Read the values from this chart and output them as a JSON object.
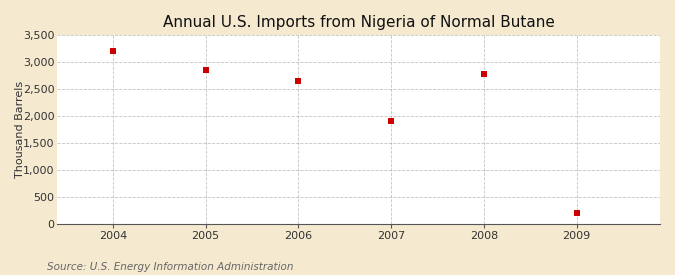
{
  "title": "Annual U.S. Imports from Nigeria of Normal Butane",
  "ylabel": "Thousand Barrels",
  "source": "Source: U.S. Energy Information Administration",
  "years": [
    2004,
    2005,
    2006,
    2007,
    2008,
    2009
  ],
  "values": [
    3210,
    2860,
    2660,
    1900,
    2780,
    195
  ],
  "xlim": [
    2003.4,
    2009.9
  ],
  "ylim": [
    0,
    3500
  ],
  "yticks": [
    0,
    500,
    1000,
    1500,
    2000,
    2500,
    3000,
    3500
  ],
  "ytick_labels": [
    "0",
    "500",
    "1,000",
    "1,500",
    "2,000",
    "2,500",
    "3,000",
    "3,500"
  ],
  "xticks": [
    2004,
    2005,
    2006,
    2007,
    2008,
    2009
  ],
  "marker_color": "#cc0000",
  "marker_size": 5,
  "fig_bg_color": "#f5ead0",
  "plot_bg_color": "#ffffff",
  "grid_color": "#aaaaaa",
  "title_fontsize": 11,
  "label_fontsize": 8,
  "tick_fontsize": 8,
  "source_fontsize": 7.5
}
